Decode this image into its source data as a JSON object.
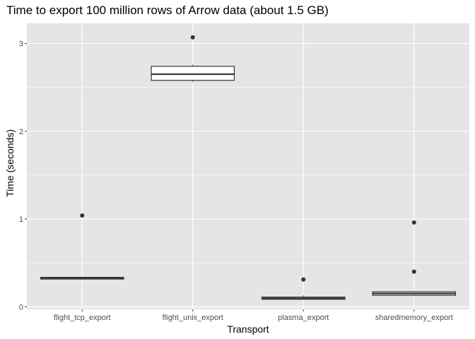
{
  "chart_data": {
    "type": "boxplot",
    "title": "Time to export 100 million rows of Arrow data (about 1.5 GB)",
    "xlabel": "Transport",
    "ylabel": "Time (seconds)",
    "categories": [
      "flight_tcp_export",
      "flight_unix_export",
      "plasma_export",
      "sharedmemory_export"
    ],
    "y_ticks": [
      0,
      1,
      2,
      3
    ],
    "y_tick_labels": [
      "0",
      "1",
      "2",
      "3"
    ],
    "ylim": [
      -0.03,
      3.23
    ],
    "grid": true,
    "boxes": [
      {
        "category": "flight_tcp_export",
        "whisker_low": 0.31,
        "q1": 0.315,
        "median": 0.325,
        "q3": 0.335,
        "whisker_high": 0.34,
        "outliers": [
          1.04
        ]
      },
      {
        "category": "flight_unix_export",
        "whisker_low": 2.56,
        "q1": 2.58,
        "median": 2.65,
        "q3": 2.74,
        "whisker_high": 2.76,
        "outliers": [
          3.07
        ]
      },
      {
        "category": "plasma_export",
        "whisker_low": 0.08,
        "q1": 0.085,
        "median": 0.095,
        "q3": 0.11,
        "whisker_high": 0.13,
        "outliers": [
          0.31
        ]
      },
      {
        "category": "sharedmemory_export",
        "whisker_low": 0.12,
        "q1": 0.13,
        "median": 0.15,
        "q3": 0.17,
        "whisker_high": 0.18,
        "outliers": [
          0.4,
          0.96
        ]
      }
    ],
    "colors": {
      "panel_background": "#e5e5e5",
      "grid": "#ffffff",
      "box_fill": "#ffffff",
      "box_stroke": "#333333",
      "outlier": "#333333",
      "tick_text": "#4d4d4d"
    }
  }
}
